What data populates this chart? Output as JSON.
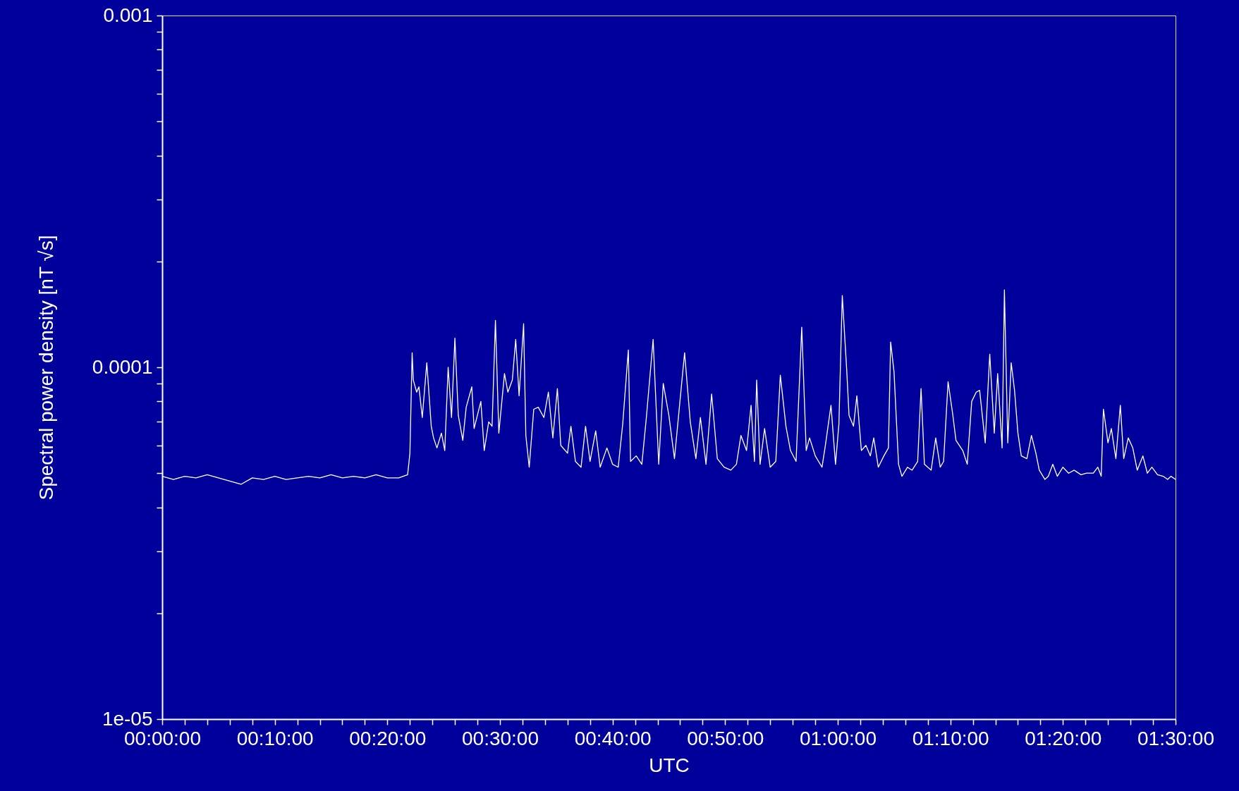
{
  "chart_data": {
    "type": "line",
    "xlabel": "UTC",
    "ylabel": "Spectral power density [nT √s]",
    "log": "y",
    "grid": false,
    "marker": "none",
    "line_style": "solid",
    "xlim": [
      0,
      1.5
    ],
    "ylim": [
      1e-05,
      0.001
    ],
    "xticks": [
      {
        "value": 0,
        "label": "00:00:00"
      },
      {
        "value": 0.0333,
        "label": null
      },
      {
        "value": 0.0667,
        "label": null
      },
      {
        "value": 0.1,
        "label": null
      },
      {
        "value": 0.1333,
        "label": null
      },
      {
        "value": 0.1667,
        "label": "00:10:00"
      },
      {
        "value": 0.2,
        "label": null
      },
      {
        "value": 0.2333,
        "label": null
      },
      {
        "value": 0.2667,
        "label": null
      },
      {
        "value": 0.3,
        "label": null
      },
      {
        "value": 0.3333,
        "label": "00:20:00"
      },
      {
        "value": 0.3667,
        "label": null
      },
      {
        "value": 0.4,
        "label": null
      },
      {
        "value": 0.4333,
        "label": null
      },
      {
        "value": 0.4667,
        "label": null
      },
      {
        "value": 0.5,
        "label": "00:30:00"
      },
      {
        "value": 0.5333,
        "label": null
      },
      {
        "value": 0.5667,
        "label": null
      },
      {
        "value": 0.6,
        "label": null
      },
      {
        "value": 0.6333,
        "label": null
      },
      {
        "value": 0.6667,
        "label": "00:40:00"
      },
      {
        "value": 0.7,
        "label": null
      },
      {
        "value": 0.7333,
        "label": null
      },
      {
        "value": 0.7667,
        "label": null
      },
      {
        "value": 0.8,
        "label": null
      },
      {
        "value": 0.8333,
        "label": "00:50:00"
      },
      {
        "value": 0.8667,
        "label": null
      },
      {
        "value": 0.9,
        "label": null
      },
      {
        "value": 0.9333,
        "label": null
      },
      {
        "value": 0.9667,
        "label": null
      },
      {
        "value": 1,
        "label": "01:00:00"
      },
      {
        "value": 1.0333,
        "label": null
      },
      {
        "value": 1.0667,
        "label": null
      },
      {
        "value": 1.1,
        "label": null
      },
      {
        "value": 1.1333,
        "label": null
      },
      {
        "value": 1.1667,
        "label": "01:10:00"
      },
      {
        "value": 1.2,
        "label": null
      },
      {
        "value": 1.2333,
        "label": null
      },
      {
        "value": 1.2667,
        "label": null
      },
      {
        "value": 1.3,
        "label": null
      },
      {
        "value": 1.3333,
        "label": "01:20:00"
      },
      {
        "value": 1.3667,
        "label": null
      },
      {
        "value": 1.4,
        "label": null
      },
      {
        "value": 1.4333,
        "label": null
      },
      {
        "value": 1.4667,
        "label": null
      },
      {
        "value": 1.5,
        "label": "01:30:00"
      }
    ],
    "yticks": [
      {
        "value": 1e-05,
        "label": "1e-05"
      },
      {
        "value": 2e-05,
        "label": null
      },
      {
        "value": 3e-05,
        "label": null
      },
      {
        "value": 4e-05,
        "label": null
      },
      {
        "value": 5e-05,
        "label": null
      },
      {
        "value": 6e-05,
        "label": null
      },
      {
        "value": 7e-05,
        "label": null
      },
      {
        "value": 8e-05,
        "label": null
      },
      {
        "value": 9e-05,
        "label": null
      },
      {
        "value": 0.0001,
        "label": "0.0001"
      },
      {
        "value": 0.0002,
        "label": null
      },
      {
        "value": 0.0003,
        "label": null
      },
      {
        "value": 0.0004,
        "label": null
      },
      {
        "value": 0.0005,
        "label": null
      },
      {
        "value": 0.0006,
        "label": null
      },
      {
        "value": 0.0007,
        "label": null
      },
      {
        "value": 0.0008,
        "label": null
      },
      {
        "value": 0.0009,
        "label": null
      },
      {
        "value": 0.001,
        "label": "0.001"
      }
    ],
    "series": [
      {
        "color": "#ffffff",
        "x": [
          0,
          0.0167,
          0.0333,
          0.05,
          0.0667,
          0.0833,
          0.1,
          0.1167,
          0.1333,
          0.15,
          0.1667,
          0.1833,
          0.2,
          0.2167,
          0.2333,
          0.25,
          0.2667,
          0.2833,
          0.3,
          0.3167,
          0.3333,
          0.35,
          0.3633,
          0.3667,
          0.37,
          0.3717,
          0.3767,
          0.38,
          0.385,
          0.3917,
          0.3983,
          0.4017,
          0.4067,
          0.4133,
          0.4183,
          0.4233,
          0.4283,
          0.4333,
          0.4383,
          0.445,
          0.45,
          0.4583,
          0.4617,
          0.4717,
          0.4767,
          0.4833,
          0.4883,
          0.4933,
          0.4983,
          0.5067,
          0.5117,
          0.5183,
          0.5233,
          0.5283,
          0.535,
          0.5383,
          0.5433,
          0.55,
          0.5567,
          0.565,
          0.5717,
          0.5783,
          0.585,
          0.59,
          0.6,
          0.605,
          0.6117,
          0.62,
          0.6267,
          0.6333,
          0.6417,
          0.6483,
          0.6583,
          0.6667,
          0.675,
          0.6817,
          0.69,
          0.6933,
          0.7017,
          0.71,
          0.7167,
          0.7267,
          0.735,
          0.7417,
          0.75,
          0.7583,
          0.765,
          0.7733,
          0.7817,
          0.79,
          0.7967,
          0.805,
          0.8133,
          0.8217,
          0.8317,
          0.8417,
          0.85,
          0.8567,
          0.865,
          0.8717,
          0.8767,
          0.88,
          0.885,
          0.8917,
          0.9,
          0.9083,
          0.915,
          0.9233,
          0.93,
          0.9383,
          0.9467,
          0.9533,
          0.9583,
          0.9667,
          0.9767,
          0.9817,
          0.99,
          0.9967,
          1.0017,
          1.0067,
          1.0133,
          1.0167,
          1.0233,
          1.0283,
          1.035,
          1.0417,
          1.0483,
          1.0533,
          1.06,
          1.0683,
          1.075,
          1.0783,
          1.0833,
          1.09,
          1.095,
          1.1033,
          1.11,
          1.1183,
          1.1233,
          1.1283,
          1.1383,
          1.145,
          1.1517,
          1.1567,
          1.1633,
          1.17,
          1.175,
          1.185,
          1.1917,
          1.1983,
          1.205,
          1.21,
          1.2183,
          1.225,
          1.2317,
          1.2367,
          1.2433,
          1.2467,
          1.2517,
          1.2567,
          1.2617,
          1.2667,
          1.2717,
          1.28,
          1.2867,
          1.2933,
          1.2983,
          1.3067,
          1.3117,
          1.3183,
          1.325,
          1.3333,
          1.3417,
          1.35,
          1.36,
          1.3683,
          1.3783,
          1.385,
          1.39,
          1.3933,
          1.4,
          1.405,
          1.4117,
          1.4183,
          1.4233,
          1.43,
          1.4367,
          1.4433,
          1.4517,
          1.4583,
          1.465,
          1.4733,
          1.4817,
          1.4883,
          1.4933,
          1.5
        ],
        "values": [
          4.9e-05,
          4.8e-05,
          4.9e-05,
          4.85e-05,
          4.95e-05,
          4.85e-05,
          4.75e-05,
          4.65e-05,
          4.85e-05,
          4.8e-05,
          4.9e-05,
          4.8e-05,
          4.85e-05,
          4.9e-05,
          4.85e-05,
          4.95e-05,
          4.85e-05,
          4.9e-05,
          4.85e-05,
          4.95e-05,
          4.85e-05,
          4.85e-05,
          4.95e-05,
          5.7e-05,
          0.00011,
          9.2e-05,
          8.5e-05,
          8.8e-05,
          7.2e-05,
          0.000103,
          6.8e-05,
          6.3e-05,
          5.9e-05,
          6.5e-05,
          5.8e-05,
          0.0001,
          7.2e-05,
          0.000121,
          7.3e-05,
          6.2e-05,
          7.7e-05,
          8.8e-05,
          6.7e-05,
          8e-05,
          5.8e-05,
          7e-05,
          6.8e-05,
          0.000136,
          6.5e-05,
          9.6e-05,
          8.5e-05,
          9.2e-05,
          0.00012,
          8.3e-05,
          0.000133,
          6.4e-05,
          5.2e-05,
          7.6e-05,
          7.7e-05,
          7.2e-05,
          8.5e-05,
          6.3e-05,
          8.7e-05,
          6e-05,
          5.7e-05,
          6.8e-05,
          5.4e-05,
          5.2e-05,
          6.8e-05,
          5.4e-05,
          6.6e-05,
          5.2e-05,
          5.9e-05,
          5.3e-05,
          5.2e-05,
          6.9e-05,
          0.000112,
          5.4e-05,
          5.6e-05,
          5.3e-05,
          7.2e-05,
          0.00012,
          5.3e-05,
          9e-05,
          7.3e-05,
          5.5e-05,
          7.5e-05,
          0.00011,
          7e-05,
          5.5e-05,
          7.2e-05,
          5.3e-05,
          8.4e-05,
          5.5e-05,
          5.2e-05,
          5.1e-05,
          5.3e-05,
          6.4e-05,
          5.8e-05,
          7.8e-05,
          5.4e-05,
          9.2e-05,
          5.3e-05,
          6.7e-05,
          5.2e-05,
          5.4e-05,
          9.5e-05,
          6.8e-05,
          5.8e-05,
          5.4e-05,
          0.00013,
          5.8e-05,
          6.3e-05,
          5.6e-05,
          5.2e-05,
          6e-05,
          7.8e-05,
          5.3e-05,
          6.9e-05,
          0.00016,
          9.8e-05,
          7.3e-05,
          6.8e-05,
          8.3e-05,
          5.8e-05,
          6e-05,
          5.6e-05,
          6.3e-05,
          5.2e-05,
          5.6e-05,
          5.9e-05,
          0.000118,
          9.7e-05,
          5.3e-05,
          4.9e-05,
          5.2e-05,
          5.1e-05,
          5.4e-05,
          8.7e-05,
          5.3e-05,
          5.1e-05,
          6.3e-05,
          5.2e-05,
          5.4e-05,
          9.1e-05,
          7.4e-05,
          6.2e-05,
          5.8e-05,
          5.3e-05,
          8e-05,
          8.5e-05,
          8.6e-05,
          6.1e-05,
          0.000109,
          6.5e-05,
          9.6e-05,
          5.9e-05,
          0.000166,
          6.1e-05,
          0.000103,
          8.6e-05,
          6.5e-05,
          5.6e-05,
          5.5e-05,
          6.4e-05,
          5.7e-05,
          5.1e-05,
          4.8e-05,
          4.9e-05,
          5.3e-05,
          4.9e-05,
          5.2e-05,
          5e-05,
          5.1e-05,
          4.95e-05,
          5e-05,
          5e-05,
          5.2e-05,
          4.9e-05,
          7.6e-05,
          6.1e-05,
          6.7e-05,
          5.5e-05,
          7.8e-05,
          5.5e-05,
          6.3e-05,
          5.9e-05,
          5.1e-05,
          5.6e-05,
          5e-05,
          5.2e-05,
          4.95e-05,
          4.9e-05,
          4.8e-05,
          4.9e-05,
          4.8e-05
        ]
      }
    ]
  }
}
